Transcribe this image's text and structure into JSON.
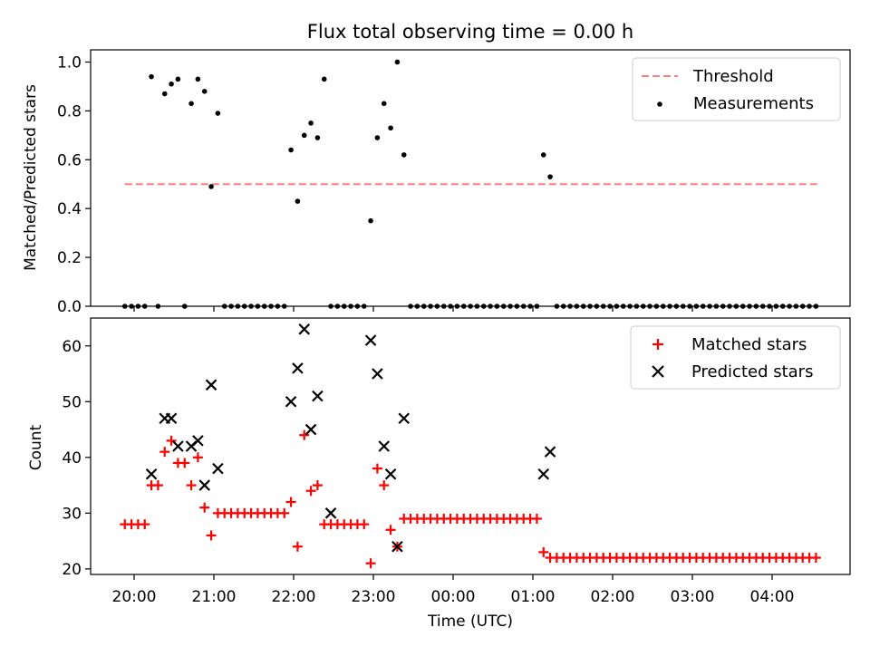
{
  "title": "Flux total observing time = 0.00 h",
  "chart_data": [
    {
      "type": "scatter",
      "ylabel": "Matched/Predicted stars",
      "xlabel": "",
      "ylim": [
        0,
        1.05
      ],
      "yticks": [
        "0.0",
        "0.2",
        "0.4",
        "0.6",
        "0.8",
        "1.0"
      ],
      "legend_position": "top-right",
      "legend": [
        "Threshold",
        "Measurements"
      ],
      "threshold": {
        "name": "Threshold",
        "y": 0.5,
        "x_start": "19:53",
        "x_end": "04:35",
        "color": "#ff7f7f",
        "style": "dashed"
      },
      "series": [
        {
          "name": "Measurements",
          "marker": "dot",
          "color": "#000000",
          "x": [
            "19:53",
            "19:58",
            "20:03",
            "20:08",
            "20:13",
            "20:18",
            "20:23",
            "20:28",
            "20:33",
            "20:38",
            "20:43",
            "20:48",
            "20:53",
            "20:58",
            "21:03",
            "21:08",
            "21:13",
            "21:18",
            "21:23",
            "21:28",
            "21:33",
            "21:38",
            "21:43",
            "21:48",
            "21:53",
            "21:58",
            "22:03",
            "22:08",
            "22:13",
            "22:18",
            "22:23",
            "22:28",
            "22:33",
            "22:38",
            "22:43",
            "22:48",
            "22:53",
            "22:58",
            "23:03",
            "23:08",
            "23:13",
            "23:18",
            "23:23",
            "23:28",
            "23:33",
            "23:38",
            "23:43",
            "23:48",
            "23:53",
            "23:58",
            "00:03",
            "00:08",
            "00:13",
            "00:18",
            "00:23",
            "00:28",
            "00:33",
            "00:38",
            "00:43",
            "00:48",
            "00:53",
            "00:58",
            "01:03",
            "01:08",
            "01:13",
            "01:18",
            "01:23",
            "01:28",
            "01:33",
            "01:38",
            "01:43",
            "01:48",
            "01:53",
            "01:58",
            "02:03",
            "02:08",
            "02:13",
            "02:18",
            "02:23",
            "02:28",
            "02:33",
            "02:38",
            "02:43",
            "02:48",
            "02:53",
            "02:58",
            "03:03",
            "03:08",
            "03:13",
            "03:18",
            "03:23",
            "03:28",
            "03:33",
            "03:38",
            "03:43",
            "03:48",
            "03:53",
            "03:58",
            "04:03",
            "04:08",
            "04:13",
            "04:18",
            "04:23",
            "04:28",
            "04:33"
          ],
          "y": [
            0,
            0,
            0,
            0,
            0.94,
            0,
            0.87,
            0.91,
            0.93,
            0,
            0.83,
            0.93,
            0.88,
            0.49,
            0.79,
            0,
            0,
            0,
            0,
            0,
            0,
            0,
            0,
            0,
            0,
            0.64,
            0.43,
            0.7,
            0.75,
            0.69,
            0.93,
            0,
            0,
            0,
            0,
            0,
            0,
            0.35,
            0.69,
            0.83,
            0.73,
            1.0,
            0.62,
            0,
            0,
            0,
            0,
            0,
            0,
            0,
            0,
            0,
            0,
            0,
            0,
            0,
            0,
            0,
            0,
            0,
            0,
            0,
            0,
            0.62,
            0.53,
            0,
            0,
            0,
            0,
            0,
            0,
            0,
            0,
            0,
            0,
            0,
            0,
            0,
            0,
            0,
            0,
            0,
            0,
            0,
            0,
            0,
            0,
            0,
            0,
            0,
            0,
            0,
            0,
            0,
            0,
            0,
            0,
            0,
            0,
            0,
            0,
            0,
            0,
            0,
            0
          ]
        }
      ]
    },
    {
      "type": "scatter",
      "ylabel": "Count",
      "xlabel": "Time (UTC)",
      "ylim": [
        19,
        65
      ],
      "yticks": [
        "20",
        "30",
        "40",
        "50",
        "60"
      ],
      "xticks": [
        "20:00",
        "21:00",
        "22:00",
        "23:00",
        "00:00",
        "01:00",
        "02:00",
        "03:00",
        "04:00"
      ],
      "legend_position": "top-right",
      "legend": [
        "Matched stars",
        "Predicted stars"
      ],
      "series": [
        {
          "name": "Matched stars",
          "marker": "plus",
          "color": "#ff0000",
          "x": [
            "19:53",
            "19:58",
            "20:03",
            "20:08",
            "20:13",
            "20:18",
            "20:23",
            "20:28",
            "20:33",
            "20:38",
            "20:43",
            "20:48",
            "20:53",
            "20:58",
            "21:03",
            "21:08",
            "21:13",
            "21:18",
            "21:23",
            "21:28",
            "21:33",
            "21:38",
            "21:43",
            "21:48",
            "21:53",
            "21:58",
            "22:03",
            "22:08",
            "22:13",
            "22:18",
            "22:23",
            "22:28",
            "22:33",
            "22:38",
            "22:43",
            "22:48",
            "22:53",
            "22:58",
            "23:03",
            "23:08",
            "23:13",
            "23:18",
            "23:23",
            "23:28",
            "23:33",
            "23:38",
            "23:43",
            "23:48",
            "23:53",
            "23:58",
            "00:03",
            "00:08",
            "00:13",
            "00:18",
            "00:23",
            "00:28",
            "00:33",
            "00:38",
            "00:43",
            "00:48",
            "00:53",
            "00:58",
            "01:03",
            "01:08",
            "01:13",
            "01:18",
            "01:23",
            "01:28",
            "01:33",
            "01:38",
            "01:43",
            "01:48",
            "01:53",
            "01:58",
            "02:03",
            "02:08",
            "02:13",
            "02:18",
            "02:23",
            "02:28",
            "02:33",
            "02:38",
            "02:43",
            "02:48",
            "02:53",
            "02:58",
            "03:03",
            "03:08",
            "03:13",
            "03:18",
            "03:23",
            "03:28",
            "03:33",
            "03:38",
            "03:43",
            "03:48",
            "03:53",
            "03:58",
            "04:03",
            "04:08",
            "04:13",
            "04:18",
            "04:23",
            "04:28",
            "04:33"
          ],
          "y": [
            28,
            28,
            28,
            28,
            35,
            35,
            41,
            43,
            39,
            39,
            35,
            40,
            31,
            26,
            30,
            30,
            30,
            30,
            30,
            30,
            30,
            30,
            30,
            30,
            30,
            32,
            24,
            44,
            34,
            35,
            28,
            28,
            28,
            28,
            28,
            28,
            28,
            21,
            38,
            35,
            27,
            24,
            29,
            29,
            29,
            29,
            29,
            29,
            29,
            29,
            29,
            29,
            29,
            29,
            29,
            29,
            29,
            29,
            29,
            29,
            29,
            29,
            29,
            23,
            22,
            22,
            22,
            22,
            22,
            22,
            22,
            22,
            22,
            22,
            22,
            22,
            22,
            22,
            22,
            22,
            22,
            22,
            22,
            22,
            22,
            22,
            22,
            22,
            22,
            22,
            22,
            22,
            22,
            22,
            22,
            22,
            22,
            22,
            22,
            22,
            22,
            22,
            22,
            22,
            22
          ]
        },
        {
          "name": "Predicted stars",
          "marker": "x",
          "color": "#000000",
          "x": [
            "20:13",
            "20:23",
            "20:28",
            "20:33",
            "20:43",
            "20:48",
            "20:53",
            "20:58",
            "21:03",
            "21:58",
            "22:03",
            "22:08",
            "22:13",
            "22:18",
            "22:28",
            "22:58",
            "23:03",
            "23:08",
            "23:13",
            "23:18",
            "23:23",
            "01:08",
            "01:13"
          ],
          "y": [
            37,
            47,
            47,
            42,
            42,
            43,
            35,
            53,
            38,
            50,
            56,
            63,
            45,
            51,
            30,
            61,
            55,
            42,
            37,
            24,
            47,
            37,
            41
          ]
        }
      ]
    }
  ]
}
